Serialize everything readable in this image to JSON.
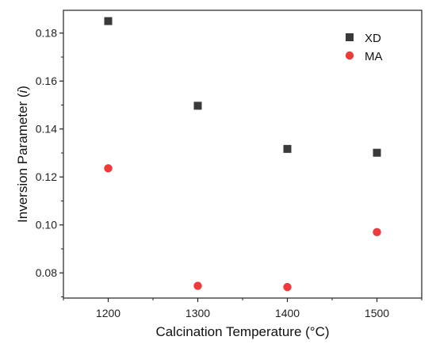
{
  "chart_data": {
    "type": "scatter",
    "xlabel": "Calcination Temperature (°C)",
    "ylabel_prefix": "Inversion Parameter (",
    "ylabel_italic": "i",
    "ylabel_suffix": ")",
    "xlim": [
      1150,
      1550
    ],
    "ylim": [
      0.0695,
      0.1895
    ],
    "xticks": [
      1200,
      1300,
      1400,
      1500
    ],
    "xtick_labels": [
      "1200",
      "1300",
      "1400",
      "1500"
    ],
    "yticks": [
      0.08,
      0.1,
      0.12,
      0.14,
      0.16,
      0.18
    ],
    "ytick_labels": [
      "0.08",
      "0.10",
      "0.12",
      "0.14",
      "0.16",
      "0.18"
    ],
    "grid": false,
    "legend_position": "top-right",
    "series": [
      {
        "name": "XD",
        "marker": "square",
        "color": "#3a3a3a",
        "x": [
          1200,
          1300,
          1400,
          1500
        ],
        "y": [
          0.185,
          0.1497,
          0.1317,
          0.1301
        ]
      },
      {
        "name": "MA",
        "marker": "circle",
        "color": "#ee3a3a",
        "x": [
          1200,
          1300,
          1400,
          1500
        ],
        "y": [
          0.1236,
          0.0746,
          0.0741,
          0.097
        ]
      }
    ]
  }
}
